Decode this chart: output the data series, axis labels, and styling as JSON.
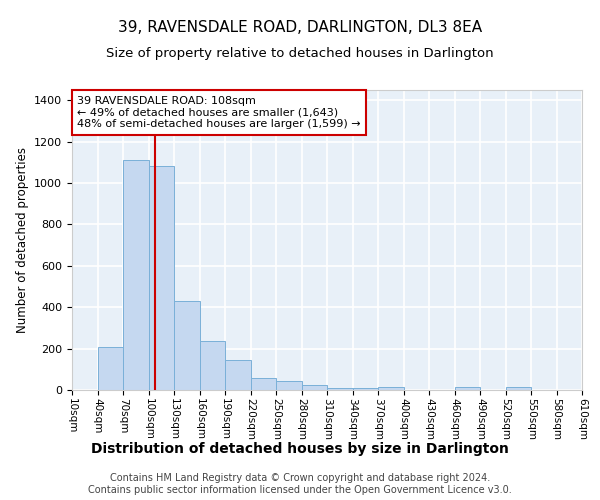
{
  "title": "39, RAVENSDALE ROAD, DARLINGTON, DL3 8EA",
  "subtitle": "Size of property relative to detached houses in Darlington",
  "xlabel": "Distribution of detached houses by size in Darlington",
  "ylabel": "Number of detached properties",
  "footer": "Contains HM Land Registry data © Crown copyright and database right 2024.\nContains public sector information licensed under the Open Government Licence v3.0.",
  "bin_edges": [
    10,
    40,
    70,
    100,
    130,
    160,
    190,
    220,
    250,
    280,
    310,
    340,
    370,
    400,
    430,
    460,
    490,
    520,
    550,
    580,
    610
  ],
  "bar_heights": [
    0,
    207,
    1110,
    1085,
    432,
    238,
    143,
    58,
    42,
    22,
    9,
    12,
    15,
    0,
    0,
    13,
    0,
    13,
    0,
    0
  ],
  "bar_color": "#c5d8f0",
  "bar_edge_color": "#7ab0d8",
  "background_color": "#e8f0f8",
  "grid_color": "#ffffff",
  "vline_x": 108,
  "vline_color": "#cc0000",
  "annotation_text": "39 RAVENSDALE ROAD: 108sqm\n← 49% of detached houses are smaller (1,643)\n48% of semi-detached houses are larger (1,599) →",
  "annotation_box_color": "#ffffff",
  "annotation_border_color": "#cc0000",
  "ylim": [
    0,
    1450
  ],
  "yticks": [
    0,
    200,
    400,
    600,
    800,
    1000,
    1200,
    1400
  ],
  "tick_labels": [
    "10sqm",
    "40sqm",
    "70sqm",
    "100sqm",
    "130sqm",
    "160sqm",
    "190sqm",
    "220sqm",
    "250sqm",
    "280sqm",
    "310sqm",
    "340sqm",
    "370sqm",
    "400sqm",
    "430sqm",
    "460sqm",
    "490sqm",
    "520sqm",
    "550sqm",
    "580sqm",
    "610sqm"
  ],
  "title_fontsize": 11,
  "subtitle_fontsize": 9.5,
  "xlabel_fontsize": 10,
  "ylabel_fontsize": 8.5,
  "footer_fontsize": 7,
  "annotation_fontsize": 8
}
